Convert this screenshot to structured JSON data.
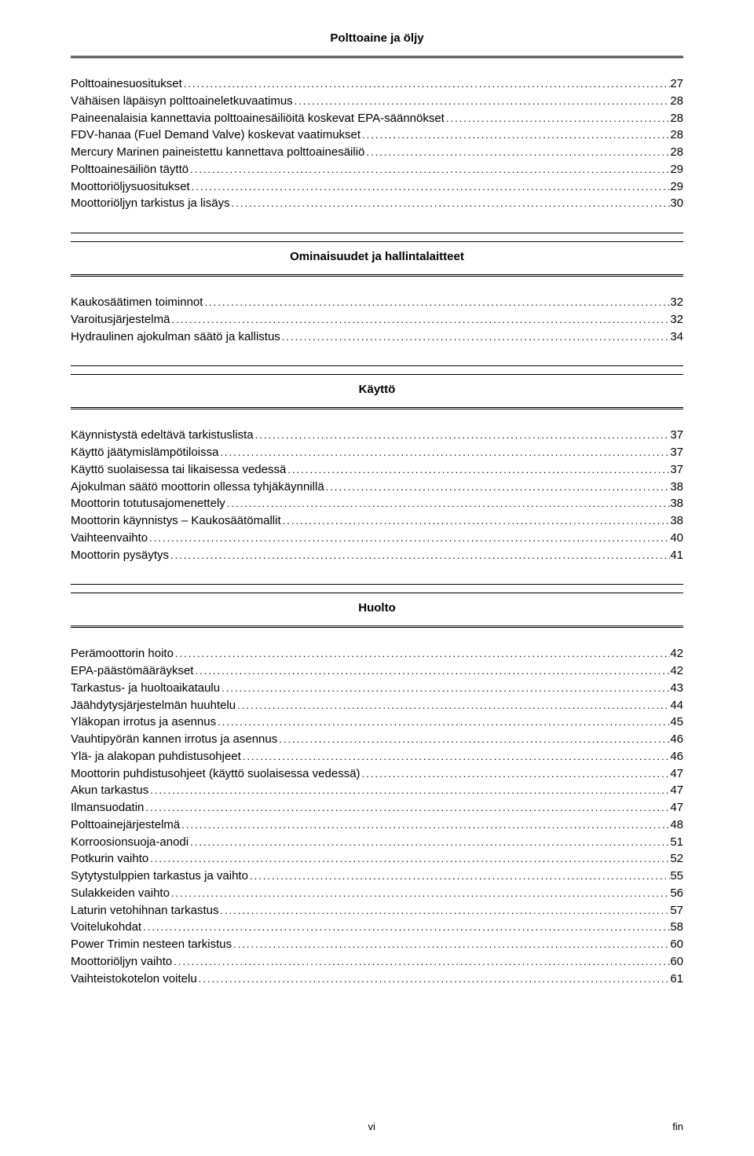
{
  "sections": [
    {
      "title": "Polttoaine ja öljy",
      "entries": [
        {
          "label": "Polttoainesuositukset",
          "page": "27"
        },
        {
          "label": "Vähäisen läpäisyn polttoaineletkuvaatimus",
          "page": "28"
        },
        {
          "label": "Paineenalaisia kannettavia polttoainesäiliöitä koskevat EPA‑säännökset",
          "page": "28"
        },
        {
          "label": "FDV‑hanaa (Fuel Demand Valve) koskevat vaatimukset",
          "page": "28"
        },
        {
          "label": "Mercury Marinen paineistettu kannettava polttoainesäiliö",
          "page": "28"
        },
        {
          "label": "Polttoainesäiliön täyttö",
          "page": "29"
        },
        {
          "label": "Moottoriöljysuositukset",
          "page": "29"
        },
        {
          "label": "Moottoriöljyn tarkistus ja lisäys",
          "page": "30"
        }
      ]
    },
    {
      "title": "Ominaisuudet ja hallintalaitteet",
      "entries": [
        {
          "label": "Kaukosäätimen toiminnot",
          "page": "32"
        },
        {
          "label": "Varoitusjärjestelmä",
          "page": "32"
        },
        {
          "label": "Hydraulinen ajokulman säätö ja kallistus",
          "page": "34"
        }
      ]
    },
    {
      "title": "Käyttö",
      "entries": [
        {
          "label": "Käynnistystä edeltävä tarkistuslista",
          "page": "37"
        },
        {
          "label": "Käyttö jäätymislämpötiloissa",
          "page": "37"
        },
        {
          "label": "Käyttö suolaisessa tai likaisessa vedessä",
          "page": "37"
        },
        {
          "label": "Ajokulman säätö moottorin ollessa tyhjäkäynnillä",
          "page": "38"
        },
        {
          "label": "Moottorin totutusajomenettely",
          "page": "38"
        },
        {
          "label": "Moottorin käynnistys – Kaukosäätömallit",
          "page": "38"
        },
        {
          "label": "Vaihteenvaihto",
          "page": "40"
        },
        {
          "label": "Moottorin pysäytys",
          "page": "41"
        }
      ]
    },
    {
      "title": "Huolto",
      "entries": [
        {
          "label": "Perämoottorin hoito",
          "page": "42"
        },
        {
          "label": "EPA‑päästömääräykset",
          "page": "42"
        },
        {
          "label": "Tarkastus‑ ja huoltoaikataulu",
          "page": "43"
        },
        {
          "label": "Jäähdytysjärjestelmän huuhtelu",
          "page": "44"
        },
        {
          "label": "Yläkopan irrotus ja asennus",
          "page": "45"
        },
        {
          "label": "Vauhtipyörän kannen irrotus ja asennus",
          "page": "46"
        },
        {
          "label": "Ylä‑ ja alakopan puhdistusohjeet",
          "page": "46"
        },
        {
          "label": "Moottorin puhdistusohjeet (käyttö suolaisessa vedessä)",
          "page": "47"
        },
        {
          "label": "Akun tarkastus",
          "page": "47"
        },
        {
          "label": "Ilmansuodatin",
          "page": "47"
        },
        {
          "label": "Polttoainejärjestelmä",
          "page": "48"
        },
        {
          "label": "Korroosionsuoja‑anodi",
          "page": "51"
        },
        {
          "label": "Potkurin vaihto",
          "page": "52"
        },
        {
          "label": "Sytytystulppien tarkastus ja vaihto",
          "page": "55"
        },
        {
          "label": "Sulakkeiden vaihto",
          "page": "56"
        },
        {
          "label": "Laturin vetohihnan tarkastus",
          "page": "57"
        },
        {
          "label": "Voitelukohdat",
          "page": "58"
        },
        {
          "label": "Power Trimin nesteen tarkistus",
          "page": "60"
        },
        {
          "label": "Moottoriöljyn vaihto",
          "page": "60"
        },
        {
          "label": "Vaihteistokotelon voitelu",
          "page": "61"
        }
      ]
    }
  ],
  "footer": {
    "left": "",
    "center": "vi",
    "right": "fin"
  }
}
